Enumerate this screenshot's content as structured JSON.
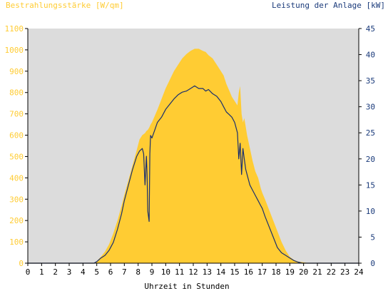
{
  "chart_data": {
    "type": "area",
    "left_axis_title": "Bestrahlungsstärke [W/qm]",
    "right_axis_title": "Leistung der Anlage [kW]",
    "xlabel": "Uhrzeit in Stunden",
    "x_ticks": [
      "0",
      "1",
      "2",
      "3",
      "4",
      "5",
      "6",
      "7",
      "8",
      "9",
      "10",
      "11",
      "12",
      "13",
      "14",
      "15",
      "16",
      "17",
      "18",
      "19",
      "20",
      "21",
      "22",
      "23",
      "24"
    ],
    "y_left_ticks": [
      "0",
      "100",
      "200",
      "300",
      "400",
      "500",
      "600",
      "700",
      "800",
      "900",
      "1000",
      "1100"
    ],
    "y_right_ticks": [
      "0",
      "5",
      "10",
      "15",
      "20",
      "25",
      "30",
      "35",
      "40",
      "45"
    ],
    "xlim": [
      0,
      24
    ],
    "ylim_left": [
      0,
      1100
    ],
    "ylim_right": [
      0,
      45
    ],
    "grid": false,
    "colors": {
      "irradiance_fill": "#ffcc33",
      "power_line": "#1a2f6e",
      "plot_background": "#dcdcdc",
      "left_axis_text": "#ffcc33",
      "right_axis_text": "#1a3a7a",
      "x_axis_text": "#000000"
    },
    "series": [
      {
        "axis": "left",
        "x": [
          4.8,
          5.0,
          5.3,
          5.6,
          5.9,
          6.2,
          6.5,
          6.8,
          7.0,
          7.3,
          7.6,
          7.9,
          8.1,
          8.3,
          8.5,
          8.6,
          8.7,
          8.8,
          8.9,
          9.0,
          9.2,
          9.4,
          9.7,
          10.0,
          10.3,
          10.6,
          10.9,
          11.2,
          11.5,
          11.8,
          12.1,
          12.4,
          12.7,
          12.9,
          13.1,
          13.4,
          13.7,
          14.0,
          14.2,
          14.4,
          14.6,
          14.8,
          15.0,
          15.2,
          15.3,
          15.4,
          15.5,
          15.6,
          15.7,
          15.8,
          15.9,
          16.1,
          16.3,
          16.5,
          16.7,
          16.9,
          17.0,
          17.2,
          17.5,
          17.8,
          18.1,
          18.4,
          18.7,
          19.0,
          19.3,
          19.6,
          19.9,
          20.2,
          20.4,
          20.6
        ],
        "y": [
          0,
          10,
          30,
          55,
          90,
          140,
          200,
          270,
          320,
          390,
          460,
          530,
          580,
          600,
          610,
          620,
          625,
          635,
          650,
          660,
          690,
          720,
          770,
          820,
          860,
          900,
          930,
          960,
          980,
          995,
          1005,
          1005,
          995,
          990,
          975,
          960,
          930,
          900,
          880,
          840,
          810,
          780,
          760,
          740,
          800,
          830,
          700,
          660,
          680,
          640,
          600,
          540,
          480,
          430,
          400,
          350,
          330,
          300,
          250,
          200,
          150,
          100,
          60,
          30,
          15,
          8,
          5,
          2,
          0,
          0
        ]
      },
      {
        "axis": "right",
        "x": [
          4.8,
          5.0,
          5.3,
          5.6,
          5.9,
          6.2,
          6.5,
          6.8,
          7.0,
          7.3,
          7.6,
          7.9,
          8.1,
          8.3,
          8.4,
          8.5,
          8.6,
          8.65,
          8.7,
          8.8,
          8.85,
          8.9,
          9.0,
          9.2,
          9.4,
          9.7,
          10.0,
          10.3,
          10.6,
          10.9,
          11.2,
          11.5,
          11.8,
          12.1,
          12.4,
          12.7,
          12.9,
          13.1,
          13.4,
          13.7,
          14.0,
          14.2,
          14.4,
          14.6,
          14.8,
          15.0,
          15.2,
          15.3,
          15.4,
          15.5,
          15.6,
          15.7,
          15.8,
          15.9,
          16.1,
          16.3,
          16.5,
          16.7,
          16.9,
          17.0,
          17.2,
          17.5,
          17.8,
          18.1,
          18.4,
          18.7,
          19.0,
          19.3,
          19.6,
          19.9,
          20.2,
          20.4,
          20.6
        ],
        "y": [
          0,
          0.3,
          1.0,
          1.5,
          2.5,
          4.0,
          6.5,
          9.5,
          12.0,
          15.0,
          18.0,
          20.5,
          21.5,
          22.0,
          21.0,
          15.0,
          20.5,
          17.0,
          10.0,
          8.0,
          21.0,
          24.5,
          24.0,
          25.5,
          27.0,
          28.0,
          29.5,
          30.5,
          31.5,
          32.3,
          32.8,
          33.0,
          33.5,
          34.0,
          33.5,
          33.5,
          33.0,
          33.3,
          32.5,
          32.0,
          31.0,
          30.0,
          29.0,
          28.5,
          28.0,
          27.0,
          25.0,
          20.0,
          23.0,
          17.0,
          22.0,
          20.0,
          18.0,
          17.0,
          15.0,
          14.0,
          13.0,
          12.0,
          11.0,
          10.5,
          9.0,
          7.0,
          5.0,
          3.0,
          2.0,
          1.5,
          1.0,
          0.5,
          0.2,
          0,
          0,
          0,
          0
        ]
      }
    ]
  }
}
